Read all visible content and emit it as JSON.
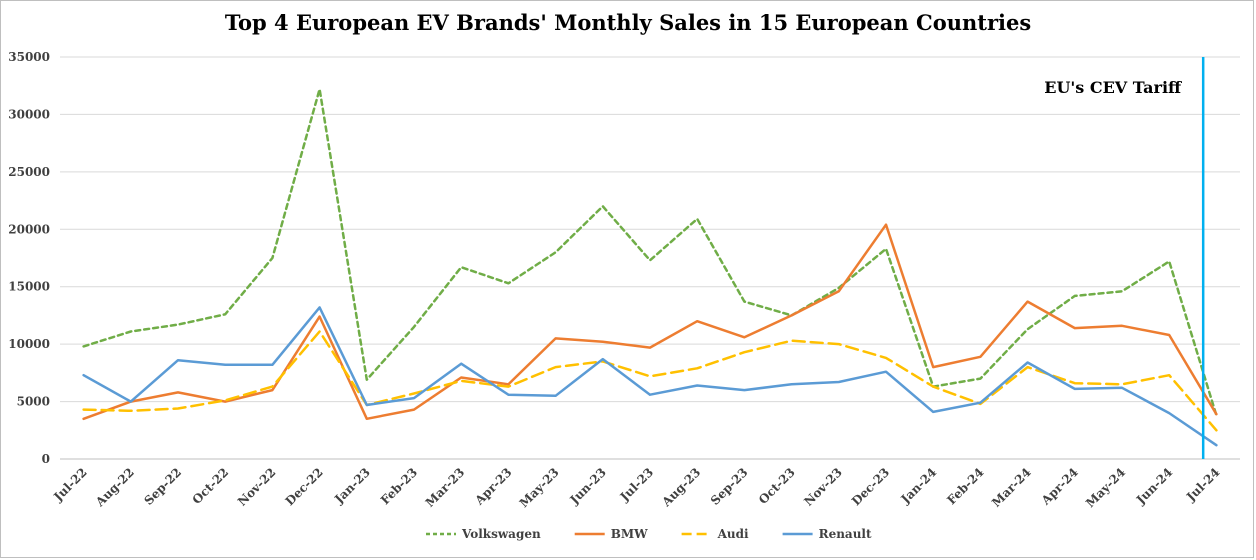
{
  "chart_data": {
    "type": "line",
    "title": "Top 4 European EV Brands' Monthly Sales in 15 European Countries",
    "xlabel": "",
    "ylabel": "",
    "ylim": [
      0,
      35000
    ],
    "yticks": [
      0,
      5000,
      10000,
      15000,
      20000,
      25000,
      30000,
      35000
    ],
    "grid": true,
    "legend_position": "bottom",
    "categories": [
      "Jul-22",
      "Aug-22",
      "Sep-22",
      "Oct-22",
      "Nov-22",
      "Dec-22",
      "Jan-23",
      "Feb-23",
      "Mar-23",
      "Apr-23",
      "May-23",
      "Jun-23",
      "Jul-23",
      "Aug-23",
      "Sep-23",
      "Oct-23",
      "Nov-23",
      "Dec-23",
      "Jan-24",
      "Feb-24",
      "Mar-24",
      "Apr-24",
      "May-24",
      "Jun-24",
      "Jul-24"
    ],
    "series": [
      {
        "name": "Volkswagen",
        "color": "#70ad47",
        "dash": "short",
        "values": [
          9800,
          11100,
          11700,
          12600,
          17500,
          32200,
          6900,
          11500,
          16700,
          15300,
          18000,
          22000,
          17300,
          20900,
          13700,
          12500,
          14900,
          18300,
          6300,
          7000,
          11300,
          14200,
          14600,
          17200,
          3800
        ]
      },
      {
        "name": "BMW",
        "color": "#ed7d31",
        "dash": "solid",
        "values": [
          3500,
          5000,
          5800,
          5000,
          6000,
          12400,
          3500,
          4300,
          7100,
          6500,
          10500,
          10200,
          9700,
          12000,
          10600,
          12500,
          14600,
          20400,
          8000,
          8900,
          13700,
          11400,
          11600,
          10800,
          3900
        ]
      },
      {
        "name": "Audi",
        "color": "#ffc000",
        "dash": "long",
        "values": [
          4300,
          4200,
          4400,
          5100,
          6300,
          11100,
          4700,
          5700,
          6800,
          6300,
          8000,
          8500,
          7200,
          7900,
          9300,
          10300,
          10000,
          8800,
          6300,
          4800,
          8000,
          6600,
          6500,
          7300,
          2500
        ]
      },
      {
        "name": "Renault",
        "color": "#5b9bd5",
        "dash": "solid",
        "values": [
          7300,
          5000,
          8600,
          8200,
          8200,
          13200,
          4700,
          5300,
          8300,
          5600,
          5500,
          8700,
          5600,
          6400,
          6000,
          6500,
          6700,
          7600,
          4100,
          4900,
          8400,
          6100,
          6200,
          4000,
          1200
        ]
      }
    ],
    "annotations": [
      {
        "text": "EU's CEV Tariff",
        "x_category": "Jul-24",
        "type": "vertical-line",
        "color": "#00b0f0"
      }
    ]
  }
}
